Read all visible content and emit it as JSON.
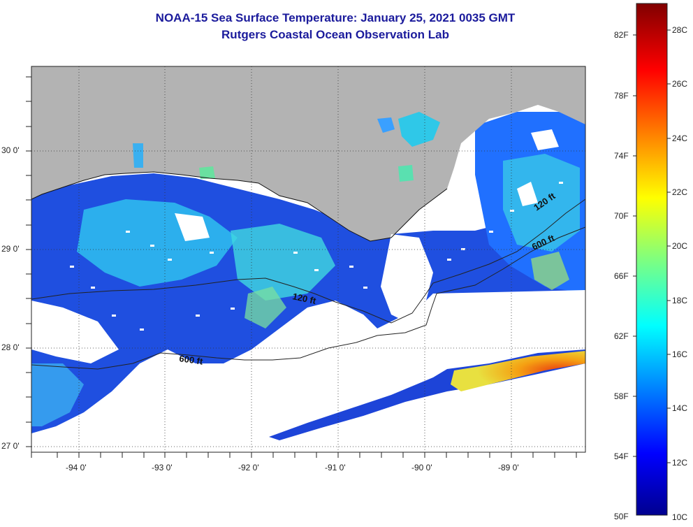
{
  "title": {
    "line1": "NOAA-15 Sea Surface Temperature:  January 25, 2021 0035 GMT",
    "line2": "Rutgers Coastal Ocean Observation Lab"
  },
  "map": {
    "lon_labels": [
      "-94 0'",
      "-93 0'",
      "-92 0'",
      "-91 0'",
      "-90 0'",
      "-89 0'"
    ],
    "lat_labels": [
      "30 0'",
      "29 0'",
      "28 0'",
      "27 0'"
    ],
    "contour_labels": [
      "120 ft",
      "600 ft",
      "120 ft",
      "600 ft"
    ],
    "land_color": "#b3b3b3",
    "no_data_color": "#ffffff"
  },
  "colorbar": {
    "fahrenheit_labels": [
      "82F",
      "78F",
      "74F",
      "70F",
      "66F",
      "62F",
      "58F",
      "54F",
      "50F"
    ],
    "celsius_labels": [
      "28C",
      "26C",
      "24C",
      "22C",
      "20C",
      "18C",
      "16C",
      "14C",
      "12C",
      "10C"
    ],
    "colormap": "jet",
    "low_color": "#00008f",
    "high_color": "#800000"
  }
}
